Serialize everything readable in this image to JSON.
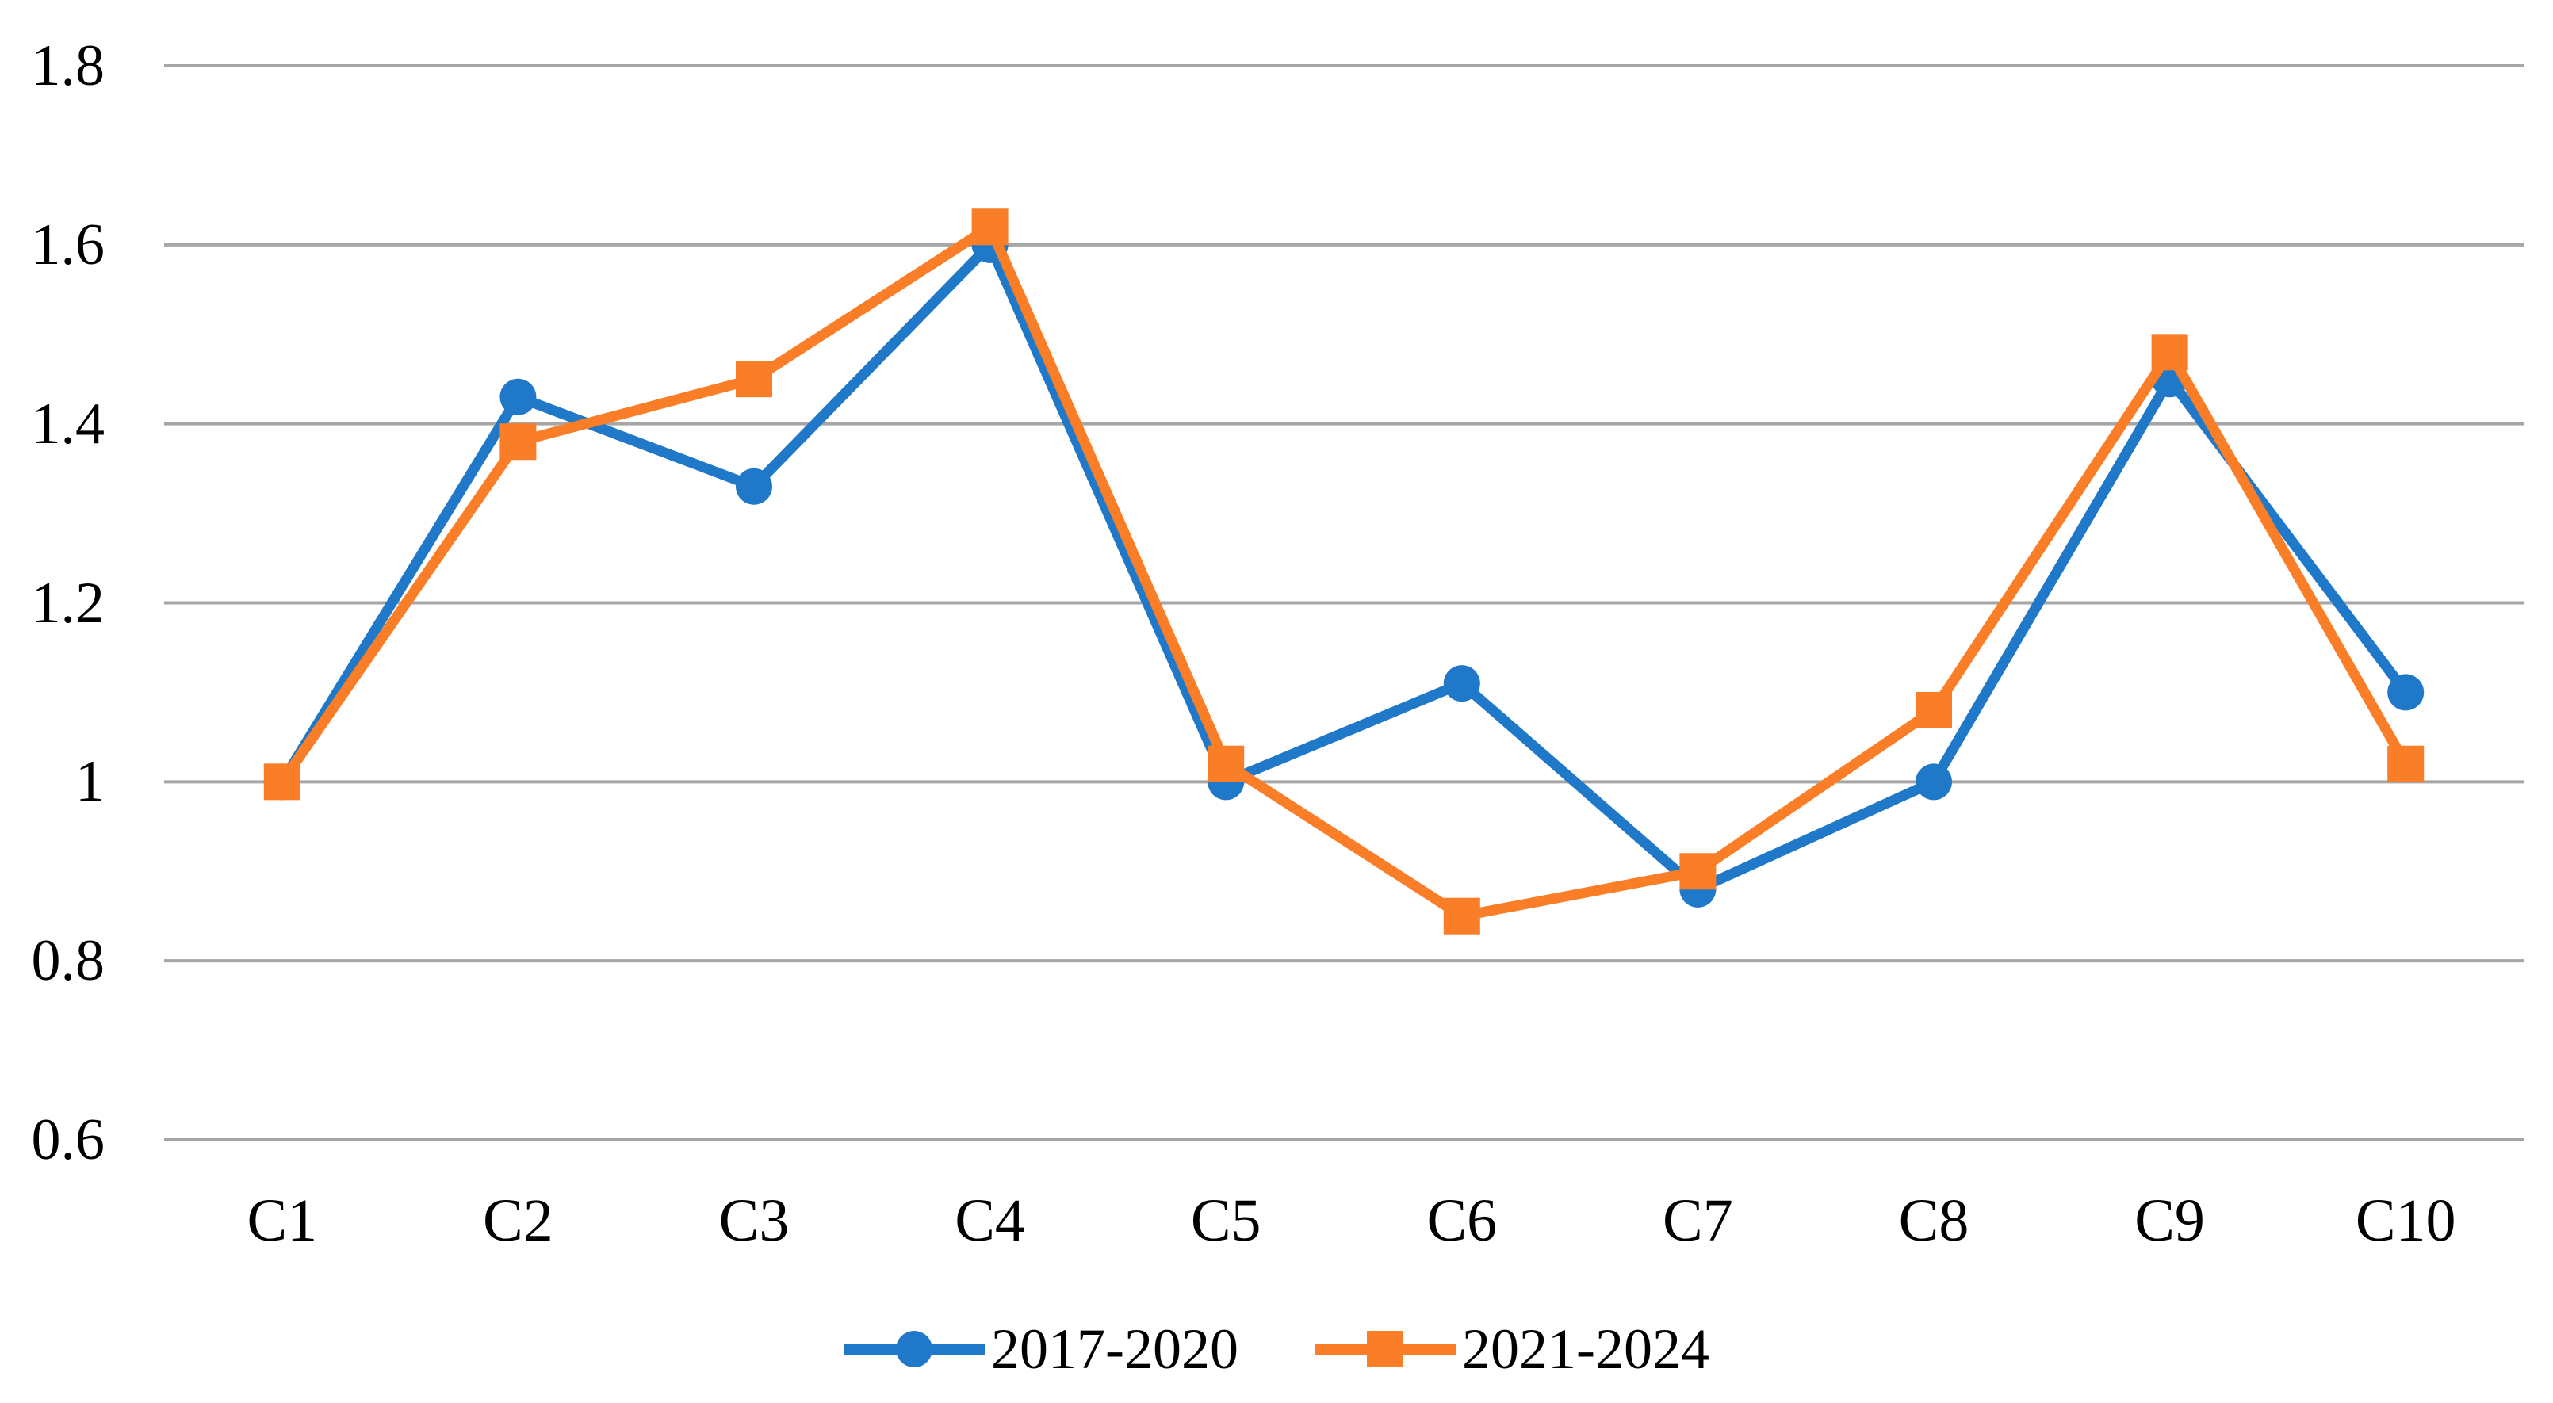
{
  "chart_data": {
    "type": "line",
    "categories": [
      "C1",
      "C2",
      "C3",
      "C4",
      "C5",
      "C6",
      "C7",
      "C8",
      "C9",
      "C10"
    ],
    "series": [
      {
        "name": "2017-2020",
        "color": "#1F78C8",
        "marker": "circle",
        "values": [
          1.0,
          1.43,
          1.33,
          1.6,
          1.0,
          1.11,
          0.88,
          1.0,
          1.45,
          1.1
        ]
      },
      {
        "name": "2021-2024",
        "color": "#FA7E28",
        "marker": "square",
        "values": [
          1.0,
          1.38,
          1.45,
          1.62,
          1.02,
          0.85,
          0.9,
          1.08,
          1.48,
          1.02
        ]
      }
    ],
    "ylim": [
      0.6,
      1.8
    ],
    "ytick_step": 0.2,
    "ytick_labels": [
      "1.8",
      "1.6",
      "1.4",
      "1.2",
      "1",
      "0.8",
      "0.6"
    ],
    "grid": "horizontal",
    "gridline_color": "#A6A6A6",
    "legend_position": "bottom-center",
    "line_width": 13,
    "marker_size": 46
  }
}
